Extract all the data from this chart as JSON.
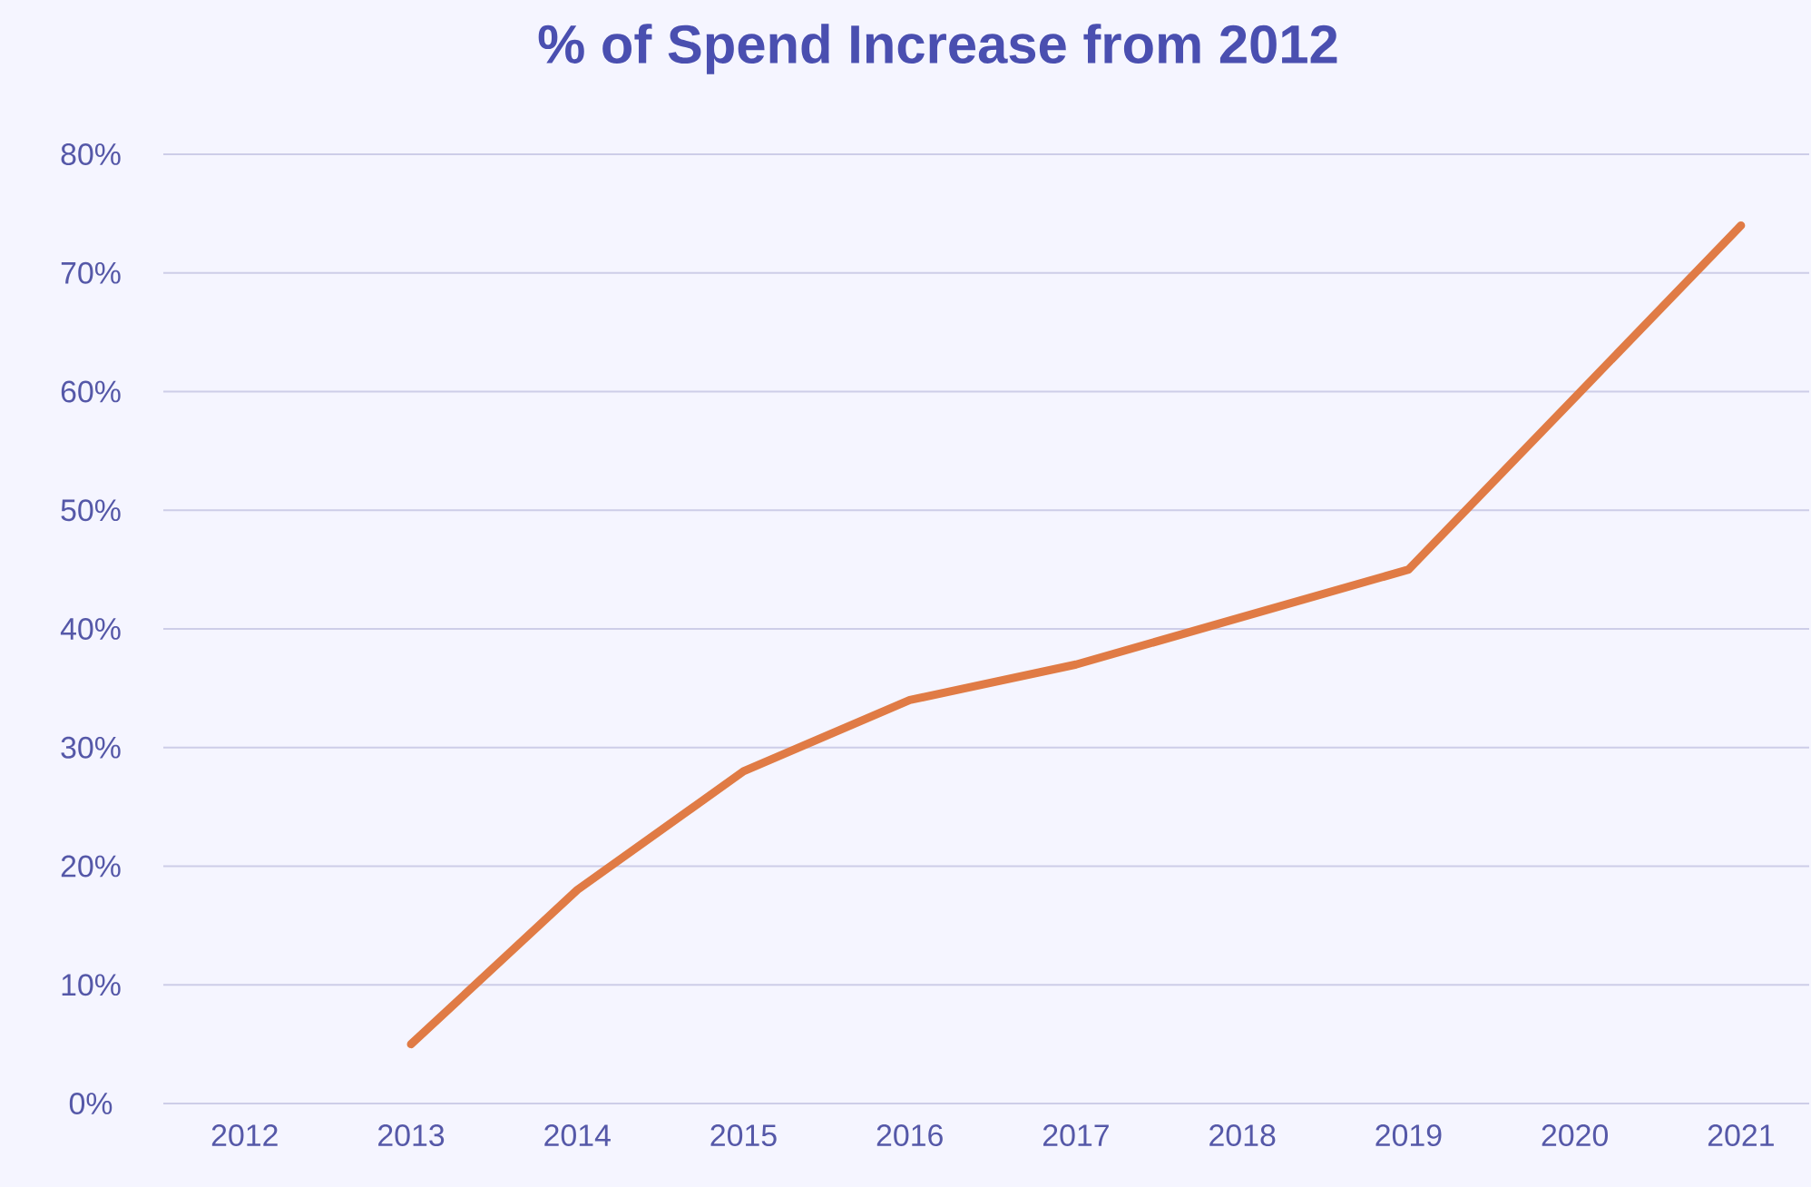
{
  "chart_data": {
    "type": "line",
    "title": "% of Spend Increase from 2012",
    "categories": [
      "2012",
      "2013",
      "2014",
      "2015",
      "2016",
      "2017",
      "2018",
      "2019",
      "2020",
      "2021"
    ],
    "series": [
      {
        "color": "#e07b45",
        "values": [
          null,
          5,
          18,
          28,
          34,
          37,
          41,
          45,
          59.5,
          74
        ]
      }
    ],
    "ylim": [
      0,
      80
    ],
    "yticks": [
      {
        "value": 0,
        "label": "0%"
      },
      {
        "value": 10,
        "label": "10%"
      },
      {
        "value": 20,
        "label": "20%"
      },
      {
        "value": 30,
        "label": "30%"
      },
      {
        "value": 40,
        "label": "40%"
      },
      {
        "value": 50,
        "label": "50%"
      },
      {
        "value": 60,
        "label": "60%"
      },
      {
        "value": 70,
        "label": "70%"
      },
      {
        "value": 80,
        "label": "80%"
      }
    ],
    "grid": "y",
    "marker": "none",
    "line_style": "solid"
  }
}
